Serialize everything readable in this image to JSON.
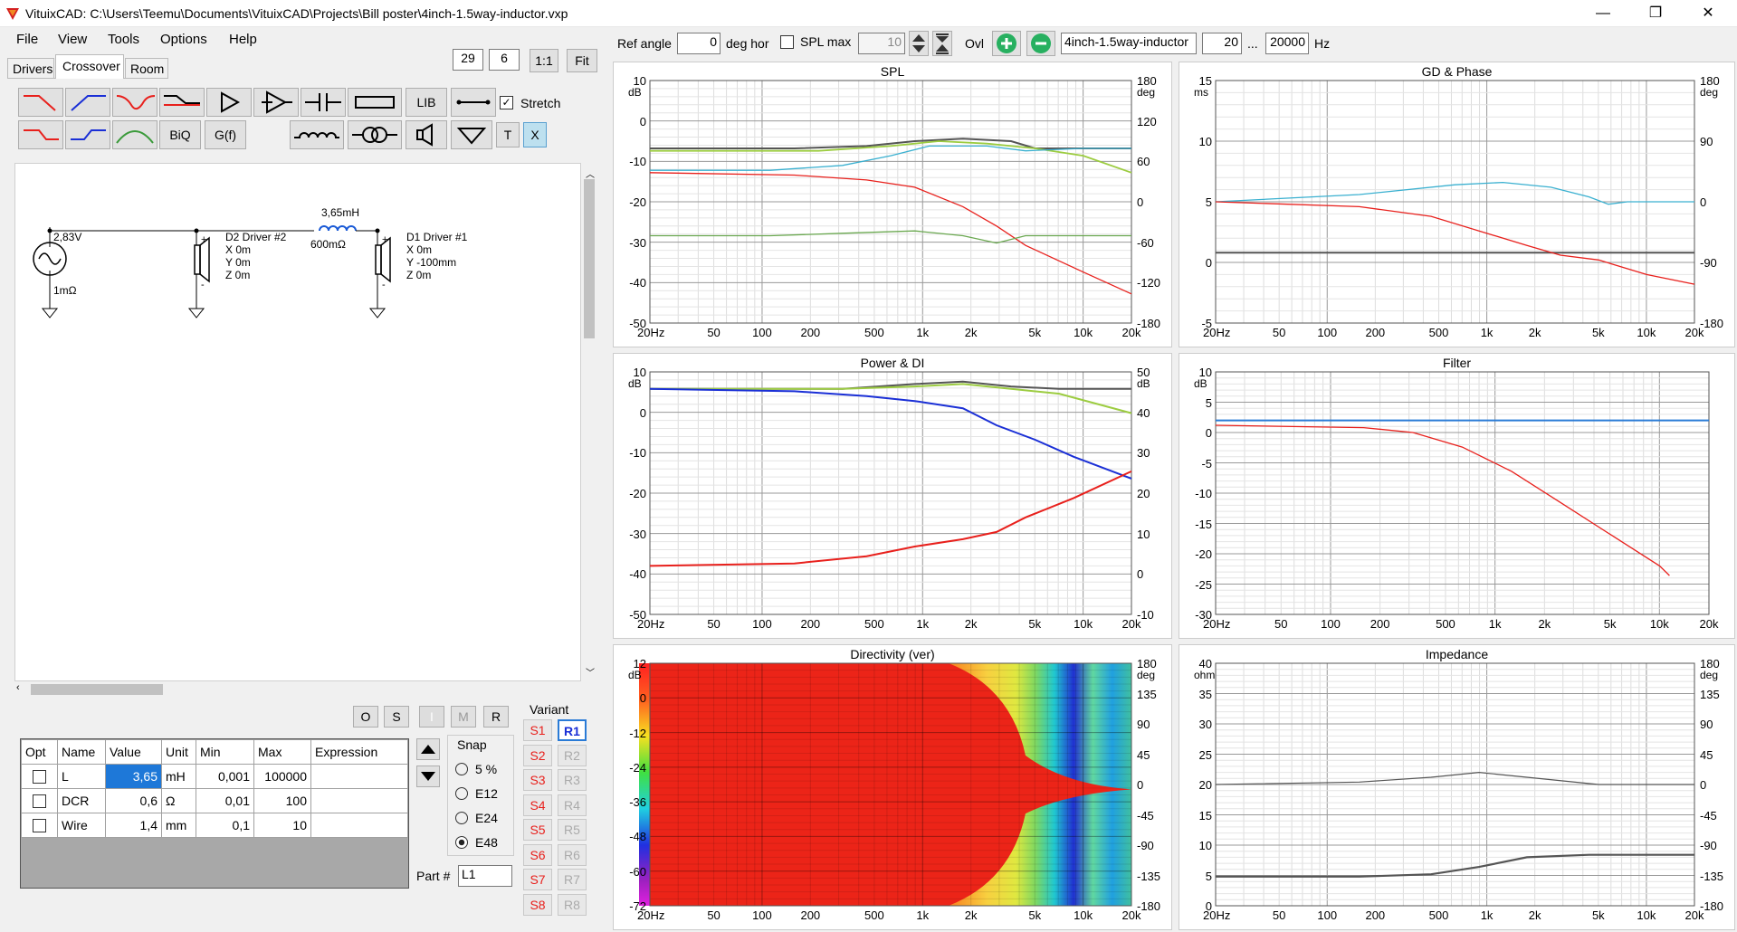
{
  "window": {
    "title": "VituixCAD: C:\\Users\\Teemu\\Documents\\VituixCAD\\Projects\\Bill poster\\4inch-1.5way-inductor.vxp",
    "minimize": "—",
    "maximize": "❐",
    "close": "✕"
  },
  "menu": [
    "File",
    "View",
    "Tools",
    "Options",
    "Help"
  ],
  "tabs": [
    "Drivers",
    "Crossover",
    "Room"
  ],
  "zoom": {
    "a": "29",
    "b": "6",
    "one": "1:1",
    "fit": "Fit"
  },
  "toolbar": {
    "lib": "LIB",
    "biq": "BiQ",
    "gf": "G(f)",
    "stretch": "Stretch",
    "t": "T",
    "x": "X"
  },
  "schematic": {
    "source_v": "2,83V",
    "source_r": "1mΩ",
    "l_val": "3,65mH",
    "l_dcr": "600mΩ",
    "d2": [
      "D2 Driver #2",
      "X 0m",
      "Y 0m",
      "Z 0m"
    ],
    "d1": [
      "D1 Driver #1",
      "X 0m",
      "Y -100mm",
      "Z 0m"
    ]
  },
  "osir": [
    "O",
    "S",
    "I",
    "M",
    "R"
  ],
  "table": {
    "headers": [
      "Opt",
      "Name",
      "Value",
      "Unit",
      "Min",
      "Max",
      "Expression"
    ],
    "rows": [
      [
        "L",
        "3,65",
        "mH",
        "0,001",
        "100000",
        ""
      ],
      [
        "DCR",
        "0,6",
        "Ω",
        "0,01",
        "100",
        ""
      ],
      [
        "Wire",
        "1,4",
        "mm",
        "0,1",
        "10",
        ""
      ]
    ]
  },
  "snap": {
    "title": "Snap",
    "options": [
      "5 %",
      "E12",
      "E24",
      "E48"
    ],
    "selected": "E48"
  },
  "part": {
    "label": "Part #",
    "value": "L1"
  },
  "variant": {
    "title": "Variant",
    "s": [
      "S1",
      "S2",
      "S3",
      "S4",
      "S5",
      "S6",
      "S7",
      "S8"
    ],
    "r": [
      "R1",
      "R2",
      "R3",
      "R4",
      "R5",
      "R6",
      "R7",
      "R8"
    ]
  },
  "topbar": {
    "ref_angle_label": "Ref angle",
    "ref_angle": "0",
    "deg_hor": "deg hor",
    "splmax": "SPL max",
    "splmax_val": "10",
    "ovl": "Ovl",
    "overlay_name": "4inch-1.5way-inductor",
    "f_lo": "20",
    "dots": "...",
    "f_hi": "20000",
    "hz": "Hz"
  },
  "xticks": [
    "20Hz",
    "50",
    "100",
    "200",
    "500",
    "1k",
    "2k",
    "5k",
    "10k",
    "20k"
  ],
  "graphs": {
    "spl": {
      "title": "SPL",
      "lu": "dB",
      "ru": "deg",
      "left": [
        "10",
        "0",
        "-10",
        "-20",
        "-30",
        "-40",
        "-50"
      ],
      "right": [
        "180",
        "120",
        "60",
        "0",
        "-60",
        "-120",
        "-180"
      ]
    },
    "gd": {
      "title": "GD & Phase",
      "lu": "ms",
      "ru": "deg",
      "left": [
        "15",
        "10",
        "5",
        "0",
        "-5"
      ],
      "right": [
        "180",
        "90",
        "0",
        "-90",
        "-180"
      ]
    },
    "pdi": {
      "title": "Power & DI",
      "lu": "dB",
      "ru": "dB",
      "left": [
        "10",
        "0",
        "-10",
        "-20",
        "-30",
        "-40",
        "-50"
      ],
      "right": [
        "50",
        "40",
        "30",
        "20",
        "10",
        "0",
        "-10"
      ]
    },
    "filter": {
      "title": "Filter",
      "lu": "dB",
      "left": [
        "10",
        "5",
        "0",
        "-5",
        "-10",
        "-15",
        "-20",
        "-25",
        "-30"
      ]
    },
    "dir": {
      "title": "Directivity (ver)",
      "lu": "dB",
      "ru": "deg",
      "left": [
        "12",
        "0",
        "-12",
        "-24",
        "-36",
        "-48",
        "-60",
        "-72"
      ],
      "right": [
        "180",
        "135",
        "90",
        "45",
        "0",
        "-45",
        "-90",
        "-135",
        "-180"
      ]
    },
    "imp": {
      "title": "Impedance",
      "lu": "ohm",
      "ru": "deg",
      "left": [
        "40",
        "35",
        "30",
        "25",
        "20",
        "15",
        "10",
        "5",
        "0"
      ],
      "right": [
        "180",
        "135",
        "90",
        "45",
        "0",
        "-45",
        "-90",
        "-135",
        "-180"
      ]
    }
  },
  "colors": {
    "red": "#e8201c",
    "blue": "#1a2fd6",
    "cyan": "#3ab0d0",
    "green": "#6aa850",
    "lime": "#9ccc40",
    "gray": "#555555",
    "accent": "#2a7bd6"
  }
}
